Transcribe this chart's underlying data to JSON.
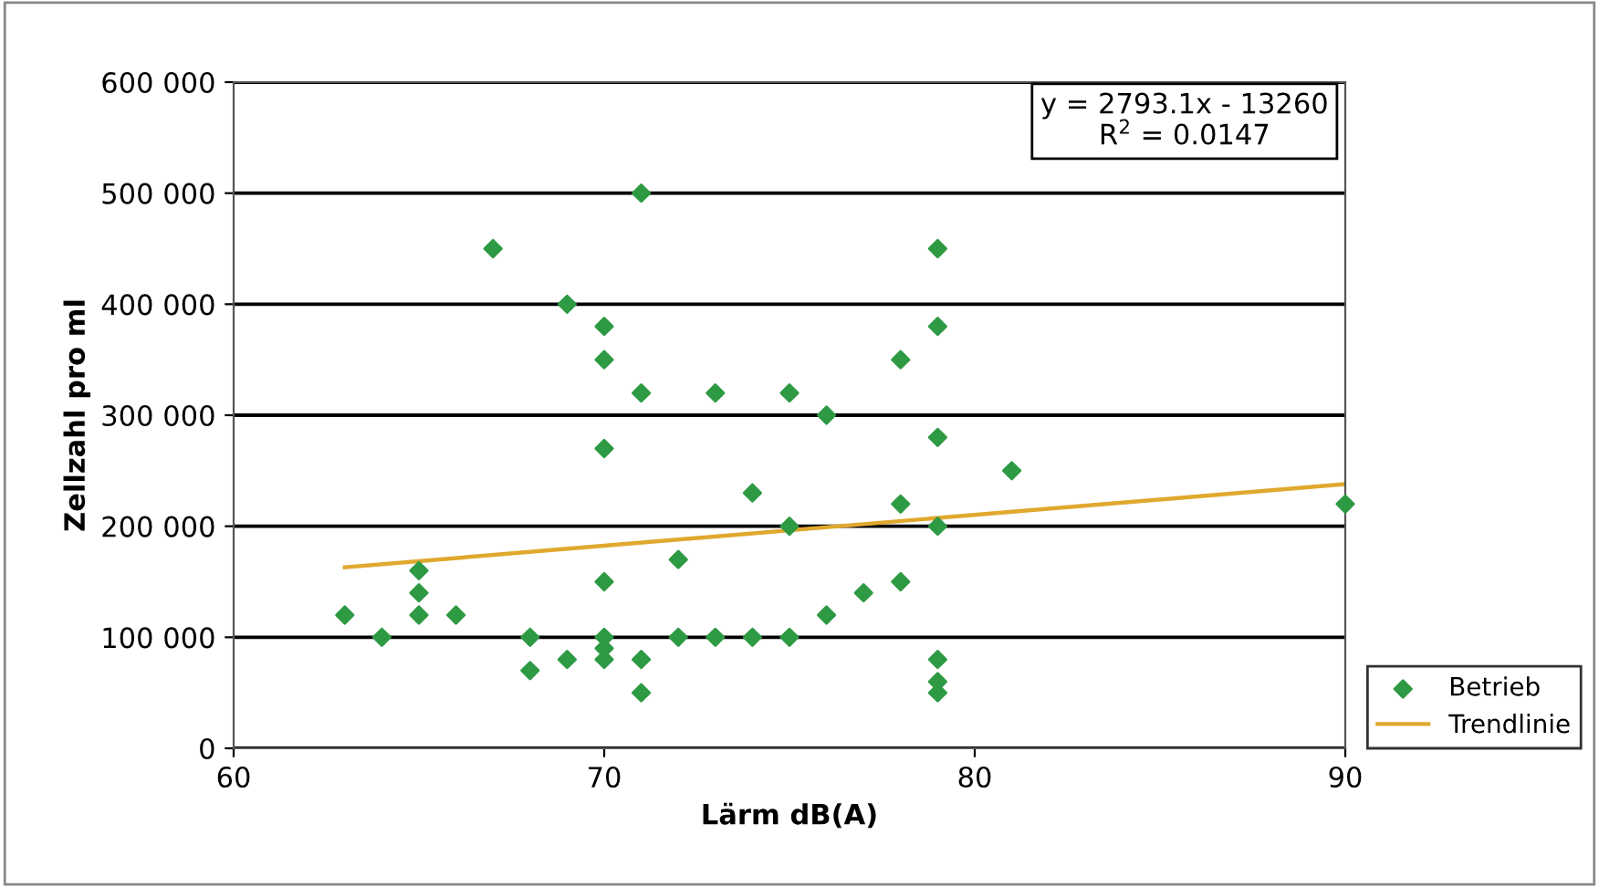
{
  "chart_data": {
    "type": "scatter",
    "xlabel": "Lärm dB(A)",
    "ylabel": "Zellzahl pro ml",
    "xlim": [
      60,
      90
    ],
    "xticks": [
      60,
      70,
      80,
      90
    ],
    "ylim": [
      0,
      600000
    ],
    "yticks": [
      {
        "value": 0,
        "label": "0"
      },
      {
        "value": 100000,
        "label": "100 000"
      },
      {
        "value": 200000,
        "label": "200 000"
      },
      {
        "value": 300000,
        "label": "300 000"
      },
      {
        "value": 400000,
        "label": "400 000"
      },
      {
        "value": 500000,
        "label": "500 000"
      },
      {
        "value": 600000,
        "label": "600 000"
      }
    ],
    "grid": "y",
    "legend": "bottom right",
    "marker": "diamond",
    "annotations": [
      "y = 2793.1x - 13260\nR$^{2}$ = 0.0147"
    ],
    "series": [
      {
        "name": "Betrieb",
        "color": "#2e9a44",
        "x": [
          63,
          64,
          65,
          65,
          65,
          66,
          67,
          68,
          68,
          69,
          69,
          70,
          70,
          70,
          70,
          70,
          70,
          70,
          71,
          71,
          71,
          71,
          72,
          72,
          73,
          73,
          74,
          74,
          75,
          75,
          75,
          76,
          76,
          77,
          78,
          78,
          78,
          79,
          79,
          79,
          79,
          79,
          79,
          79,
          81,
          90
        ],
        "values": [
          120000,
          100000,
          160000,
          140000,
          120000,
          120000,
          450000,
          100000,
          70000,
          400000,
          80000,
          380000,
          350000,
          270000,
          150000,
          100000,
          90000,
          80000,
          500000,
          320000,
          80000,
          50000,
          170000,
          100000,
          320000,
          100000,
          230000,
          100000,
          320000,
          200000,
          100000,
          300000,
          120000,
          140000,
          350000,
          220000,
          150000,
          450000,
          380000,
          280000,
          200000,
          80000,
          60000,
          50000,
          250000,
          220000
        ]
      },
      {
        "name": "Trendlinie",
        "type": "line",
        "color": "#e0a82e",
        "marker": "none",
        "line_style": "solid",
        "x": [
          63,
          90
        ],
        "values": [
          163000,
          238000
        ]
      }
    ]
  }
}
